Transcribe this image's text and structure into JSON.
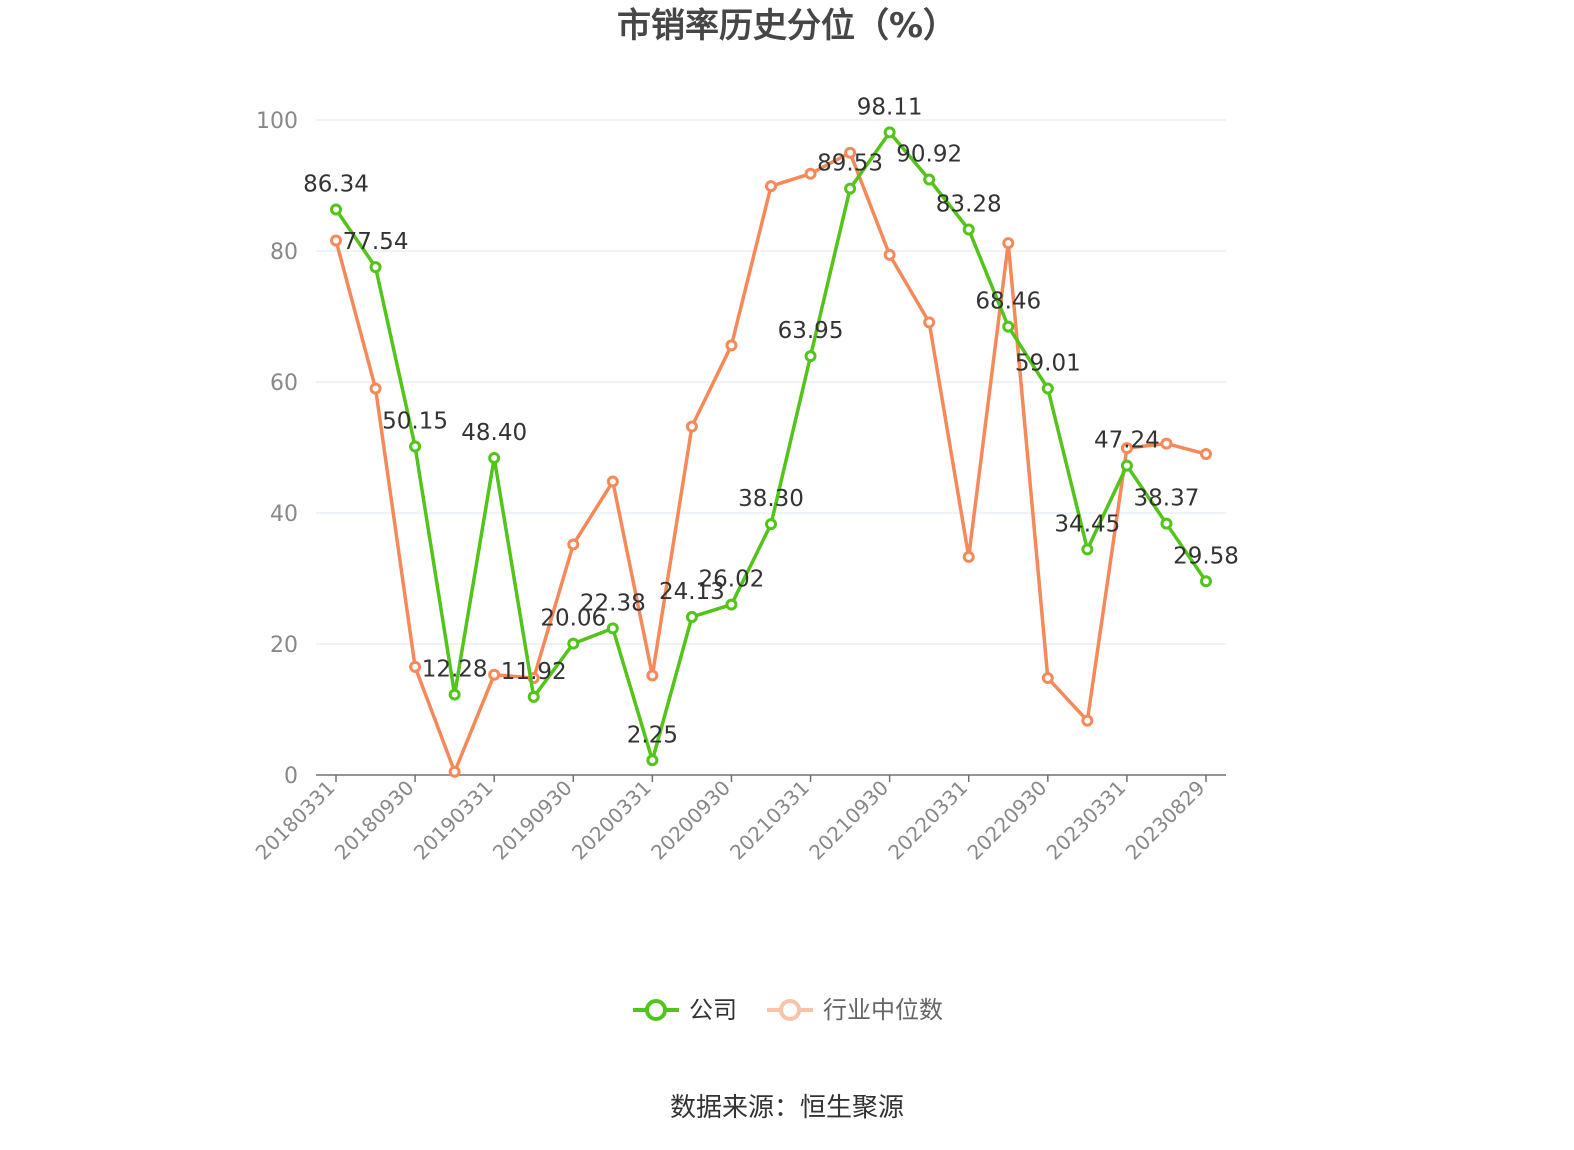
{
  "title": "市销率历史分位（%）",
  "source": "数据来源：恒生聚源",
  "legend": {
    "company": "公司",
    "industry": "行业中位数"
  },
  "colors": {
    "company": "#52c41a",
    "industry": "#f5895a",
    "grid": "#dfe5ef",
    "axis": "#6e7079",
    "tick_label": "#888888",
    "data_label": "#333333"
  },
  "chart_data": {
    "type": "line",
    "title": "市销率历史分位（%）",
    "ylim": [
      0,
      100
    ],
    "y_ticks": [
      0,
      20,
      40,
      60,
      80,
      100
    ],
    "grid": true,
    "legend_position": "bottom",
    "x_tick_labels": [
      "20180331",
      "20180930",
      "20190331",
      "20190930",
      "20200331",
      "20200930",
      "20210331",
      "20210930",
      "20220331",
      "20220930",
      "20230331",
      "20230829"
    ],
    "x_tick_indices": [
      0,
      2,
      4,
      6,
      8,
      10,
      12,
      14,
      16,
      18,
      20,
      22
    ],
    "series": [
      {
        "name": "公司",
        "values": [
          86.34,
          77.54,
          50.15,
          12.28,
          48.4,
          11.92,
          20.06,
          22.38,
          2.25,
          24.13,
          26.02,
          38.3,
          63.95,
          89.53,
          98.11,
          90.92,
          83.28,
          68.46,
          59.01,
          34.45,
          47.24,
          38.37,
          29.58
        ],
        "labels": [
          "86.34",
          "77.54",
          "50.15",
          "12.28",
          "48.40",
          "11.92",
          "20.06",
          "22.38",
          "2.25",
          "24.13",
          "26.02",
          "38.30",
          "63.95",
          "89.53",
          "98.11",
          "90.92",
          "83.28",
          "68.46",
          "59.01",
          "34.45",
          "47.24",
          "38.37",
          "29.58"
        ]
      },
      {
        "name": "行业中位数",
        "values": [
          81.6,
          59.0,
          16.5,
          0.5,
          15.3,
          14.8,
          35.2,
          44.8,
          15.2,
          53.2,
          65.6,
          89.9,
          91.8,
          95.0,
          79.4,
          69.1,
          33.3,
          81.2,
          14.8,
          8.3,
          49.9,
          50.6,
          49.0
        ]
      }
    ]
  }
}
